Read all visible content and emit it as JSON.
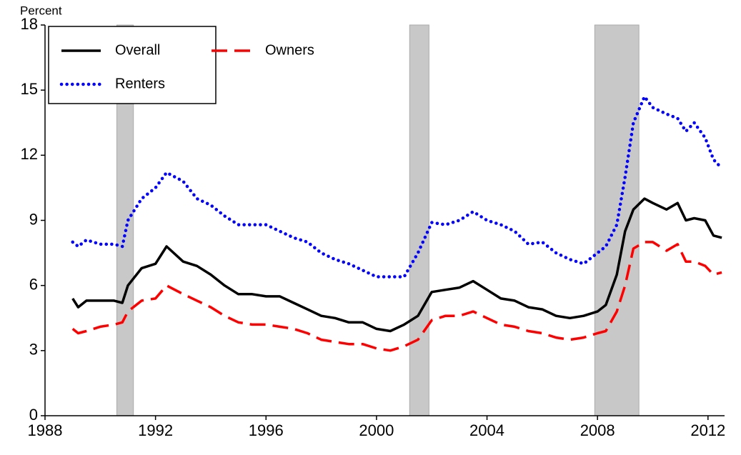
{
  "chart_data": {
    "type": "line",
    "y_label": "Percent",
    "x": [
      1989,
      1989.2,
      1989.5,
      1990,
      1990.5,
      1990.8,
      1991,
      1991.5,
      1992,
      1992.4,
      1993,
      1993.5,
      1994,
      1994.5,
      1995,
      1995.5,
      1996,
      1996.5,
      1997,
      1997.5,
      1998,
      1998.5,
      1999,
      1999.5,
      2000,
      2000.5,
      2001,
      2001.5,
      2002,
      2002.5,
      2003,
      2003.5,
      2004,
      2004.5,
      2005,
      2005.5,
      2006,
      2006.5,
      2007,
      2007.5,
      2008,
      2008.3,
      2008.7,
      2009,
      2009.3,
      2009.7,
      2010,
      2010.5,
      2010.9,
      2011.2,
      2011.5,
      2011.9,
      2012.2,
      2012.5
    ],
    "series": [
      {
        "name": "Overall",
        "color": "#000000",
        "style": "solid",
        "values": [
          5.4,
          5.0,
          5.3,
          5.3,
          5.3,
          5.2,
          6.0,
          6.8,
          7.0,
          7.8,
          7.1,
          6.9,
          6.5,
          6.0,
          5.6,
          5.6,
          5.5,
          5.5,
          5.2,
          4.9,
          4.6,
          4.5,
          4.3,
          4.3,
          4.0,
          3.9,
          4.2,
          4.6,
          5.7,
          5.8,
          5.9,
          6.2,
          5.8,
          5.4,
          5.3,
          5.0,
          4.9,
          4.6,
          4.5,
          4.6,
          4.8,
          5.1,
          6.5,
          8.5,
          9.5,
          10.0,
          9.8,
          9.5,
          9.8,
          9.0,
          9.1,
          9.0,
          8.3,
          8.2
        ]
      },
      {
        "name": "Owners",
        "color": "#ff0000",
        "style": "dashed",
        "values": [
          4.0,
          3.8,
          3.9,
          4.1,
          4.2,
          4.3,
          4.8,
          5.3,
          5.4,
          6.0,
          5.6,
          5.3,
          5.0,
          4.6,
          4.3,
          4.2,
          4.2,
          4.1,
          4.0,
          3.8,
          3.5,
          3.4,
          3.3,
          3.3,
          3.1,
          3.0,
          3.2,
          3.5,
          4.4,
          4.6,
          4.6,
          4.8,
          4.5,
          4.2,
          4.1,
          3.9,
          3.8,
          3.6,
          3.5,
          3.6,
          3.8,
          3.9,
          4.8,
          6.0,
          7.7,
          8.0,
          8.0,
          7.6,
          7.9,
          7.1,
          7.1,
          6.9,
          6.5,
          6.6
        ]
      },
      {
        "name": "Renters",
        "color": "#0000ff",
        "style": "dotted",
        "values": [
          8.0,
          7.8,
          8.1,
          7.9,
          7.9,
          7.8,
          9.0,
          10.0,
          10.5,
          11.2,
          10.8,
          10.0,
          9.7,
          9.2,
          8.8,
          8.8,
          8.8,
          8.5,
          8.2,
          8.0,
          7.5,
          7.2,
          7.0,
          6.7,
          6.4,
          6.4,
          6.4,
          7.5,
          8.9,
          8.8,
          9.0,
          9.4,
          9.0,
          8.8,
          8.5,
          7.9,
          8.0,
          7.5,
          7.2,
          7.0,
          7.5,
          7.8,
          8.8,
          11.0,
          13.5,
          14.7,
          14.2,
          13.9,
          13.7,
          13.1,
          13.5,
          12.8,
          11.8,
          11.4
        ]
      }
    ],
    "recessions": [
      [
        1990.6,
        1991.2
      ],
      [
        2001.2,
        2001.9
      ],
      [
        2007.9,
        2009.5
      ]
    ],
    "recession_color": "#c8c8c8",
    "xlim": [
      1988,
      2012.6
    ],
    "xticks": [
      1988,
      1992,
      1996,
      2000,
      2004,
      2008,
      2012
    ],
    "ylim": [
      0,
      18
    ],
    "yticks": [
      0,
      3,
      6,
      9,
      12,
      15,
      18
    ],
    "grid": false,
    "legend": "upper left"
  }
}
